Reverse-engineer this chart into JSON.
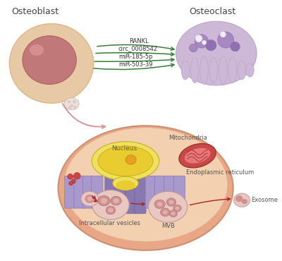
{
  "bg_color": "#ffffff",
  "osteoblast_label": "Osteoblast",
  "osteoclast_label": "Osteoclast",
  "arrows": [
    {
      "label": "RANKL"
    },
    {
      "label": "circ_0008542"
    },
    {
      "label": "miR-185-5p"
    },
    {
      "label": "miR-503-39"
    }
  ],
  "arrow_color": "#3a7d3a",
  "cell_labels": {
    "nucleus": "Nucleus",
    "mitochondria": "Mitochondria",
    "er": "Endoplasmic reticulum",
    "vesicles": "Intracellular vesicles",
    "mvb": "MVB",
    "exosome": "Exosome"
  },
  "osteoblast_outer": "#e8c9a5",
  "osteoblast_inner": "#c07878",
  "osteoclast_body": "#cdb8d8",
  "osteoclast_dark": "#a888c0",
  "osteoclast_darker": "#9070b0",
  "cell_outer": "#e8a888",
  "cell_inner": "#f2d0b0",
  "nucleus_outer": "#f0e060",
  "nucleus_inner": "#e8cc30",
  "er_color": "#a898cc",
  "er_dark": "#8878b0",
  "mito_outer": "#c84848",
  "mito_inner": "#e87878",
  "vesicle_outer": "#e8c8c0",
  "vesicle_inner": "#d09090",
  "exosome_outer": "#c87878",
  "exosome_inner": "#a85858",
  "pink_arrow": "#d09898",
  "red_arrow": "#aa2222",
  "label_fontsize": 7,
  "title_fontsize": 9,
  "small_fontsize": 6
}
